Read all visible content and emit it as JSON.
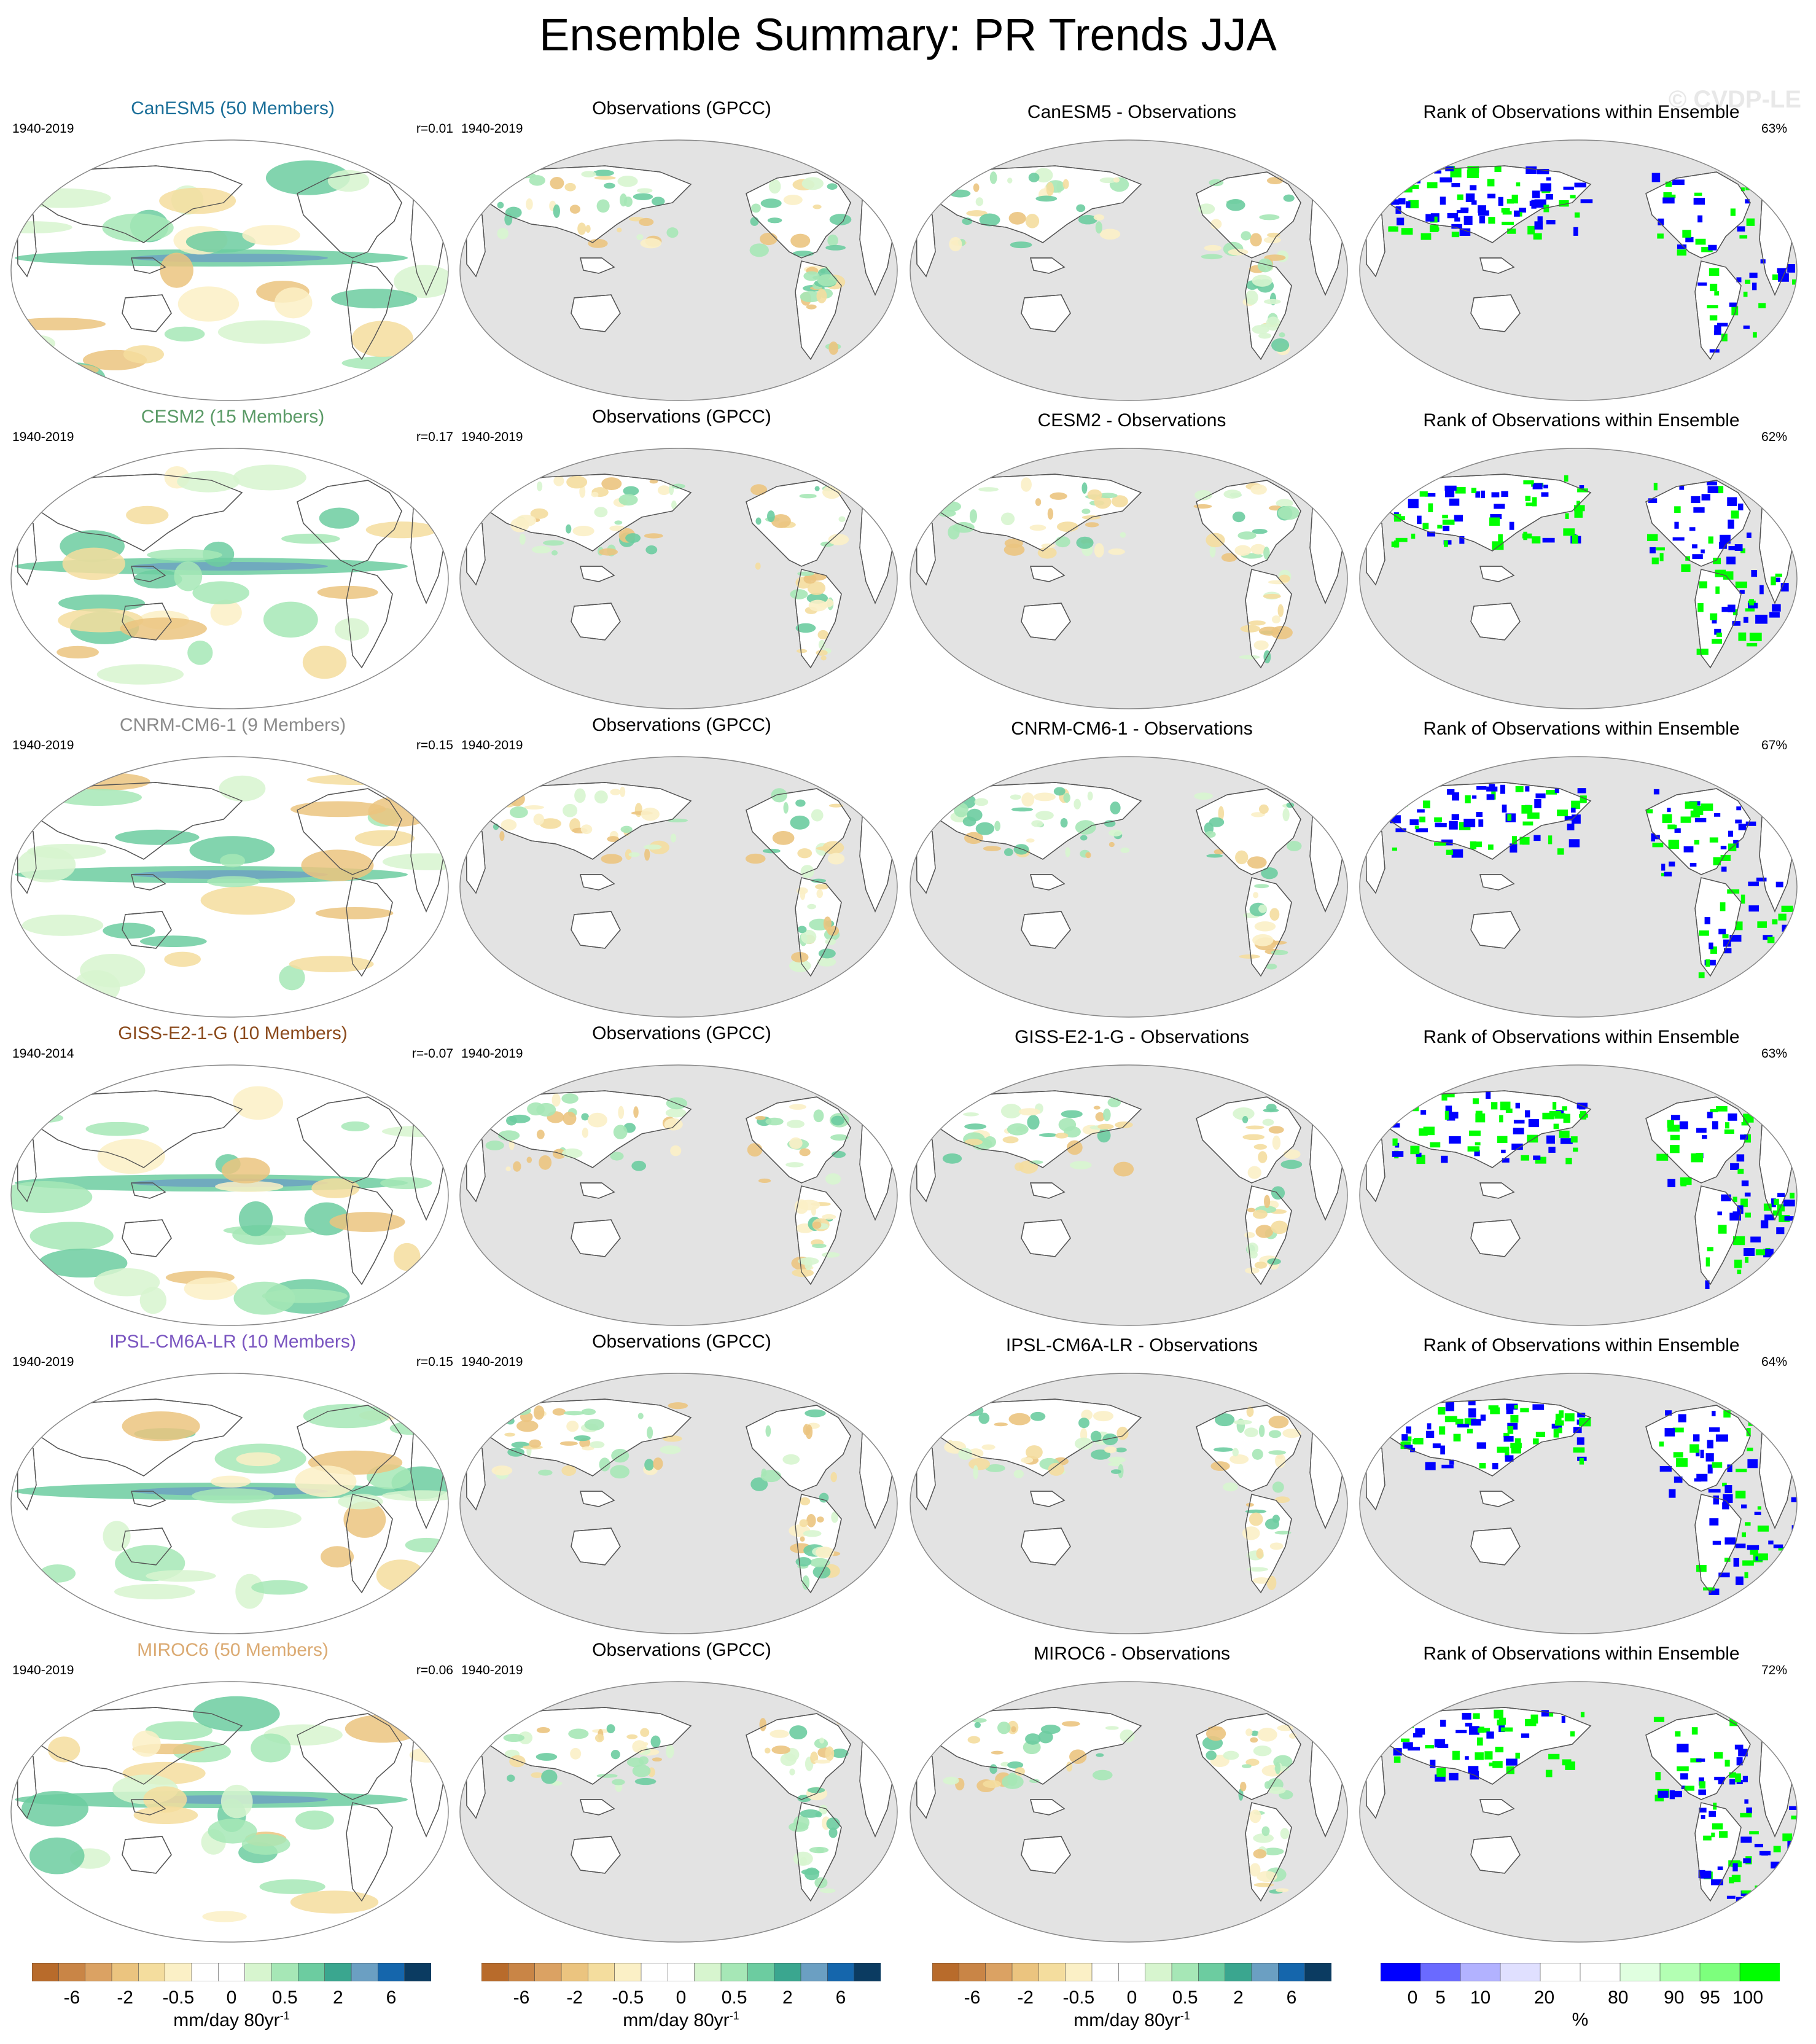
{
  "title": "Ensemble Summary: PR Trends JJA",
  "watermark": "© CVDP-LE",
  "colors": {
    "land_gray": "#e3e3e3",
    "outline": "#555555",
    "trend_scale": [
      "#b86b2b",
      "#c98546",
      "#dba263",
      "#ebc47f",
      "#f4dd9e",
      "#fbf0c6",
      "#ffffff",
      "#ffffff",
      "#d7f5cf",
      "#a6e7b6",
      "#6ccca0",
      "#3aa68f",
      "#6b9fc2",
      "#1566ac",
      "#0b3b61"
    ],
    "rank_scale": [
      "#0000ff",
      "#6a6aff",
      "#b2b2ff",
      "#e0e0ff",
      "#ffffff",
      "#ffffff",
      "#e0ffe0",
      "#b3ffb3",
      "#7dff7d",
      "#00ff00"
    ],
    "model_title_colors": [
      "#1b6f99",
      "#5a9a66",
      "#8a8a8a",
      "#8b4a1c",
      "#7a55c0",
      "#dbaa72"
    ]
  },
  "rows": [
    {
      "model_title": "CanESM5 (50 Members)",
      "model_period": "1940-2019",
      "model_r": "r=0.01",
      "obs_title": "Observations (GPCC)",
      "obs_period": "1940-2019",
      "diff_title": "CanESM5 - Observations",
      "rank_title": "Rank of Observations within Ensemble",
      "rank_pct": "63%"
    },
    {
      "model_title": "CESM2 (15 Members)",
      "model_period": "1940-2019",
      "model_r": "r=0.17",
      "obs_title": "Observations (GPCC)",
      "obs_period": "1940-2019",
      "diff_title": "CESM2 - Observations",
      "rank_title": "Rank of Observations within Ensemble",
      "rank_pct": "62%"
    },
    {
      "model_title": "CNRM-CM6-1 (9 Members)",
      "model_period": "1940-2019",
      "model_r": "r=0.15",
      "obs_title": "Observations (GPCC)",
      "obs_period": "1940-2019",
      "diff_title": "CNRM-CM6-1 - Observations",
      "rank_title": "Rank of Observations within Ensemble",
      "rank_pct": "67%"
    },
    {
      "model_title": "GISS-E2-1-G (10 Members)",
      "model_period": "1940-2014",
      "model_r": "r=-0.07",
      "obs_title": "Observations (GPCC)",
      "obs_period": "1940-2019",
      "diff_title": "GISS-E2-1-G - Observations",
      "rank_title": "Rank of Observations within Ensemble",
      "rank_pct": "63%"
    },
    {
      "model_title": "IPSL-CM6A-LR (10 Members)",
      "model_period": "1940-2019",
      "model_r": "r=0.15",
      "obs_title": "Observations (GPCC)",
      "obs_period": "1940-2019",
      "diff_title": "IPSL-CM6A-LR - Observations",
      "rank_title": "Rank of Observations within Ensemble",
      "rank_pct": "64%"
    },
    {
      "model_title": "MIROC6 (50 Members)",
      "model_period": "1940-2019",
      "model_r": "r=0.06",
      "obs_title": "Observations (GPCC)",
      "obs_period": "1940-2019",
      "diff_title": "MIROC6 - Observations",
      "rank_title": "Rank of Observations within Ensemble",
      "rank_pct": "72%"
    }
  ],
  "colorbars": [
    {
      "ticks": [
        "-6",
        "-2",
        "-0.5",
        "0",
        "0.5",
        "2",
        "6"
      ],
      "unit": "mm/day 80yr",
      "unit_sup": "-1"
    },
    {
      "ticks": [
        "-6",
        "-2",
        "-0.5",
        "0",
        "0.5",
        "2",
        "6"
      ],
      "unit": "mm/day 80yr",
      "unit_sup": "-1"
    },
    {
      "ticks": [
        "-6",
        "-2",
        "-0.5",
        "0",
        "0.5",
        "2",
        "6"
      ],
      "unit": "mm/day 80yr",
      "unit_sup": "-1"
    },
    {
      "ticks": [
        "0",
        "5",
        "10",
        "20",
        "80",
        "90",
        "95",
        "100"
      ],
      "unit": "%",
      "unit_sup": ""
    }
  ]
}
